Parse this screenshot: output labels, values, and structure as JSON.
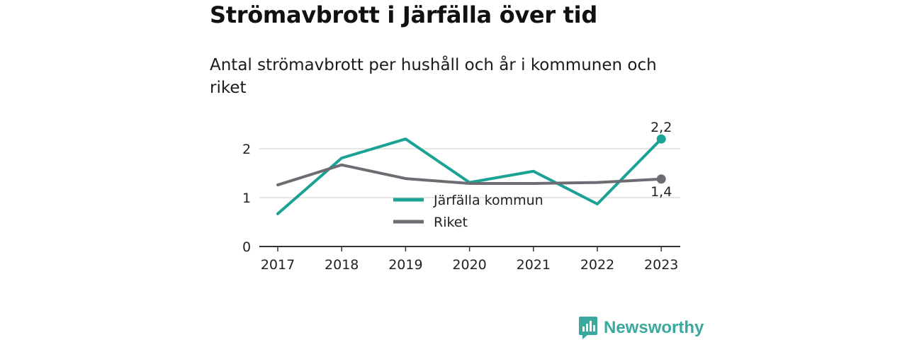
{
  "header": {
    "title": "Strömavbrott i Järfälla över tid",
    "subtitle": "Antal strömavbrott per hushåll och år i kommunen och riket"
  },
  "brand": {
    "name": "Newsworthy",
    "icon": "newsworthy-logo-icon"
  },
  "colors": {
    "jarfalla": "#1aa394",
    "riket": "#6d6c73",
    "grid": "#dddddd",
    "axis": "#333333"
  },
  "chart_data": {
    "type": "line",
    "x": [
      "2017",
      "2018",
      "2019",
      "2020",
      "2021",
      "2022",
      "2023"
    ],
    "ylim": [
      0,
      2.4
    ],
    "yticks": [
      "0",
      "1",
      "2"
    ],
    "grid": true,
    "legend_position": "center",
    "series": [
      {
        "name": "Järfälla kommun",
        "values": [
          0.67,
          1.81,
          2.2,
          1.31,
          1.54,
          0.87,
          2.2
        ],
        "end_label": "2,2"
      },
      {
        "name": "Riket",
        "values": [
          1.26,
          1.67,
          1.39,
          1.29,
          1.29,
          1.31,
          1.38
        ],
        "end_label": "1,4"
      }
    ]
  }
}
